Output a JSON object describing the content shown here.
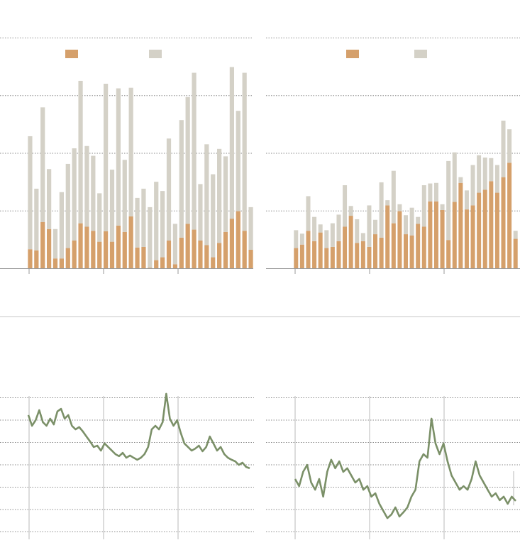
{
  "chart_data": [
    {
      "type": "stacked-bar",
      "ylim": [
        0,
        4
      ],
      "yticks": [
        0,
        1,
        2,
        3,
        4
      ],
      "grid": true,
      "series": [
        {
          "color": "#d5a06b",
          "values": [
            0.33,
            0.31,
            0.8,
            0.68,
            0.17,
            0.17,
            0.35,
            0.48,
            0.78,
            0.72,
            0.65,
            0.46,
            0.64,
            0.46,
            0.74,
            0.63,
            0.9,
            0.36,
            0.37,
            0.01,
            0.14,
            0.19,
            0.48,
            0.07,
            0.53,
            0.77,
            0.67,
            0.48,
            0.4,
            0.19,
            0.44,
            0.63,
            0.86,
            0.99,
            0.65,
            0.32
          ]
        },
        {
          "color": "#d4d1c7",
          "values": [
            1.96,
            1.07,
            1.99,
            1.04,
            0.51,
            1.15,
            1.46,
            1.6,
            2.47,
            1.4,
            1.3,
            0.84,
            2.56,
            1.25,
            2.38,
            1.25,
            2.23,
            0.86,
            1.01,
            1.05,
            1.36,
            1.15,
            1.77,
            0.7,
            2.04,
            2.2,
            2.72,
            0.98,
            1.75,
            1.44,
            1.63,
            1.31,
            2.63,
            1.74,
            2.74,
            0.74
          ]
        }
      ]
    },
    {
      "type": "stacked-bar",
      "ylim": [
        0,
        4
      ],
      "yticks": [
        0,
        1,
        2,
        3,
        4
      ],
      "grid": true,
      "series": [
        {
          "color": "#d5a06b",
          "values": [
            0.35,
            0.41,
            0.65,
            0.47,
            0.62,
            0.35,
            0.37,
            0.47,
            0.72,
            0.91,
            0.44,
            0.47,
            0.37,
            0.59,
            0.53,
            1.09,
            0.78,
            0.99,
            0.59,
            0.57,
            0.77,
            0.72,
            1.16,
            1.16,
            1.01,
            0.49,
            1.15,
            1.48,
            1.02,
            1.09,
            1.31,
            1.36,
            1.51,
            1.31,
            1.58,
            1.83,
            0.51
          ]
        },
        {
          "color": "#d4d1c7",
          "values": [
            0.31,
            0.19,
            0.6,
            0.42,
            0.14,
            0.31,
            0.41,
            0.46,
            0.72,
            0.17,
            0.41,
            0.14,
            0.72,
            0.25,
            0.96,
            0.09,
            0.91,
            0.12,
            0.33,
            0.48,
            0.12,
            0.72,
            0.31,
            0.32,
            0.1,
            1.37,
            0.86,
            0.1,
            0.33,
            0.7,
            0.65,
            0.56,
            0.4,
            0.48,
            0.98,
            0.58,
            0.14
          ]
        }
      ]
    },
    {
      "type": "line",
      "ylim": [
        0,
        6
      ],
      "yticks": [
        0,
        1,
        2,
        3,
        4,
        5,
        6
      ],
      "grid": true,
      "color": "#7b9068",
      "values": [
        5.21,
        4.73,
        4.98,
        5.43,
        4.89,
        4.73,
        5.05,
        4.79,
        5.37,
        5.49,
        5.05,
        5.21,
        4.73,
        4.57,
        4.67,
        4.48,
        4.25,
        4.03,
        3.78,
        3.84,
        3.62,
        3.94,
        3.78,
        3.62,
        3.46,
        3.37,
        3.52,
        3.3,
        3.4,
        3.3,
        3.21,
        3.3,
        3.46,
        3.78,
        4.57,
        4.73,
        4.57,
        4.89,
        6.16,
        5.05,
        4.73,
        4.98,
        4.41,
        3.94,
        3.78,
        3.62,
        3.71,
        3.84,
        3.59,
        3.78,
        4.25,
        3.94,
        3.62,
        3.78,
        3.46,
        3.3,
        3.21,
        3.14,
        2.98,
        3.08,
        2.89,
        2.83
      ]
    },
    {
      "type": "line",
      "ylim": [
        0,
        6
      ],
      "yticks": [
        0,
        1,
        2,
        3,
        4,
        5,
        6
      ],
      "grid": true,
      "color": "#7b9068",
      "values": [
        2.35,
        2.03,
        2.67,
        2.98,
        2.19,
        1.87,
        2.35,
        1.56,
        2.67,
        3.21,
        2.83,
        3.14,
        2.67,
        2.83,
        2.51,
        2.19,
        2.35,
        1.87,
        2.03,
        1.56,
        1.71,
        1.24,
        0.92,
        0.6,
        0.76,
        1.08,
        0.67,
        0.86,
        1.08,
        1.56,
        1.87,
        3.14,
        3.46,
        3.3,
        5.05,
        3.94,
        3.46,
        3.94,
        3.14,
        2.51,
        2.19,
        1.87,
        2.03,
        1.87,
        2.35,
        3.14,
        2.51,
        2.19,
        1.87,
        1.56,
        1.71,
        1.4,
        1.56,
        1.24,
        1.56,
        1.37
      ]
    }
  ]
}
